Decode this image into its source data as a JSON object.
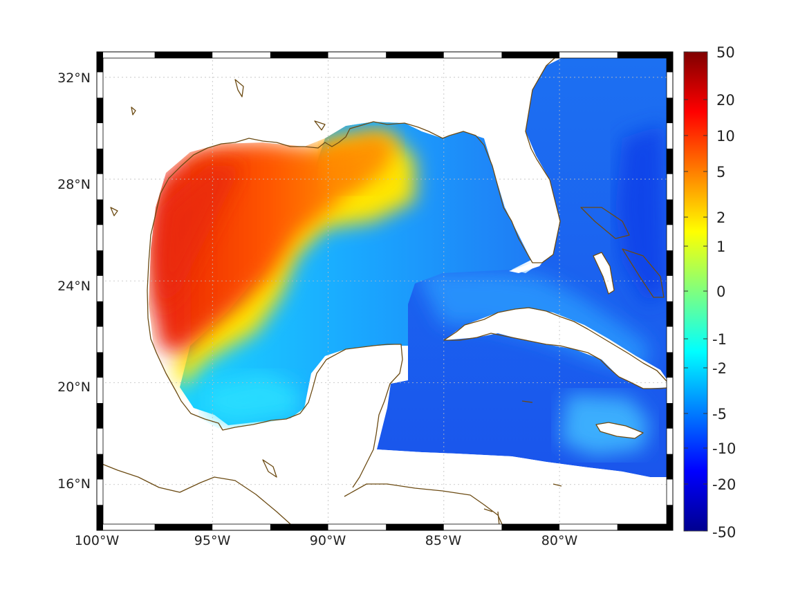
{
  "map": {
    "lat_ticks": [
      "32°N",
      "28°N",
      "24°N",
      "20°N",
      "16°N"
    ],
    "lon_ticks": [
      "100°W",
      "95°W",
      "90°W",
      "85°W",
      "80°W"
    ],
    "extent": {
      "lon_min": -100,
      "lon_max": -75.1,
      "lat_min": 14.2,
      "lat_max": 33
    },
    "grid": true,
    "frame": "black-white striped border",
    "coastline_color": "#6b4a12",
    "land_color": "#ffffff"
  },
  "colorbar": {
    "orientation": "vertical",
    "position": "right",
    "colormap": "jet",
    "scale": "symmetric log",
    "tick_labels": [
      "50",
      "20",
      "10",
      "5",
      "2",
      "1",
      "0",
      "-1",
      "-2",
      "-5",
      "-10",
      "-20",
      "-50"
    ],
    "colors": [
      "#7f0000",
      "#ff0000",
      "#ff7f00",
      "#ffff00",
      "#7fff7f",
      "#00ffff",
      "#007fff",
      "#0000ff",
      "#00008f"
    ]
  },
  "field_regions": [
    {
      "name": "western-gulf",
      "level": "5 to 10",
      "color": "#ff5a00"
    },
    {
      "name": "central-gulf-band",
      "level": "1 to 2",
      "color": "#ffe600"
    },
    {
      "name": "eastern-gulf",
      "level": "-1 to -2",
      "color": "#20d8ff"
    },
    {
      "name": "atlantic-caribbean",
      "level": "-5 to -10",
      "color": "#1a5cf0"
    }
  ]
}
